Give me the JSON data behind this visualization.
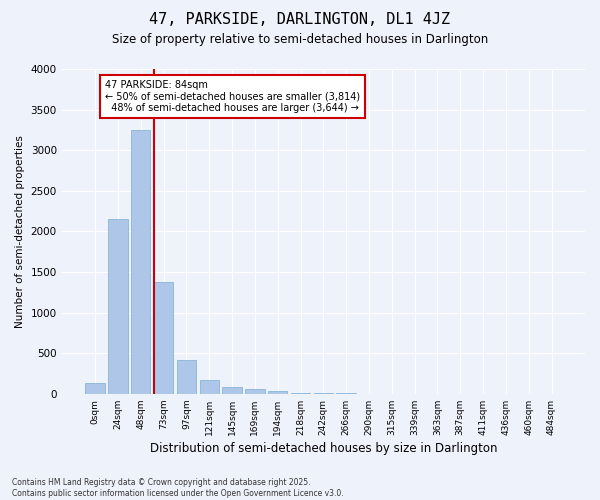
{
  "title": "47, PARKSIDE, DARLINGTON, DL1 4JZ",
  "subtitle": "Size of property relative to semi-detached houses in Darlington",
  "xlabel": "Distribution of semi-detached houses by size in Darlington",
  "ylabel": "Number of semi-detached properties",
  "bin_labels": [
    "0sqm",
    "24sqm",
    "48sqm",
    "73sqm",
    "97sqm",
    "121sqm",
    "145sqm",
    "169sqm",
    "194sqm",
    "218sqm",
    "242sqm",
    "266sqm",
    "290sqm",
    "315sqm",
    "339sqm",
    "363sqm",
    "387sqm",
    "411sqm",
    "436sqm",
    "460sqm",
    "484sqm"
  ],
  "values": [
    130,
    2150,
    3250,
    1380,
    420,
    175,
    85,
    55,
    30,
    15,
    8,
    5,
    3,
    0,
    0,
    0,
    0,
    0,
    0,
    0,
    0
  ],
  "bar_color": "#aec6e8",
  "bar_edge_color": "#7bafd4",
  "vline_color": "#cc0000",
  "vline_pos": 2.575,
  "property_size": "84sqm",
  "property_name": "47 PARKSIDE",
  "pct_smaller": 50,
  "count_smaller": 3814,
  "pct_larger": 48,
  "count_larger": 3644,
  "ylim": [
    0,
    4000
  ],
  "yticks": [
    0,
    500,
    1000,
    1500,
    2000,
    2500,
    3000,
    3500,
    4000
  ],
  "annotation_box_color": "#ffffff",
  "annotation_box_edge": "#cc0000",
  "footer": "Contains HM Land Registry data © Crown copyright and database right 2025.\nContains public sector information licensed under the Open Government Licence v3.0.",
  "background_color": "#eef2fb",
  "plot_background": "#eef2fb"
}
